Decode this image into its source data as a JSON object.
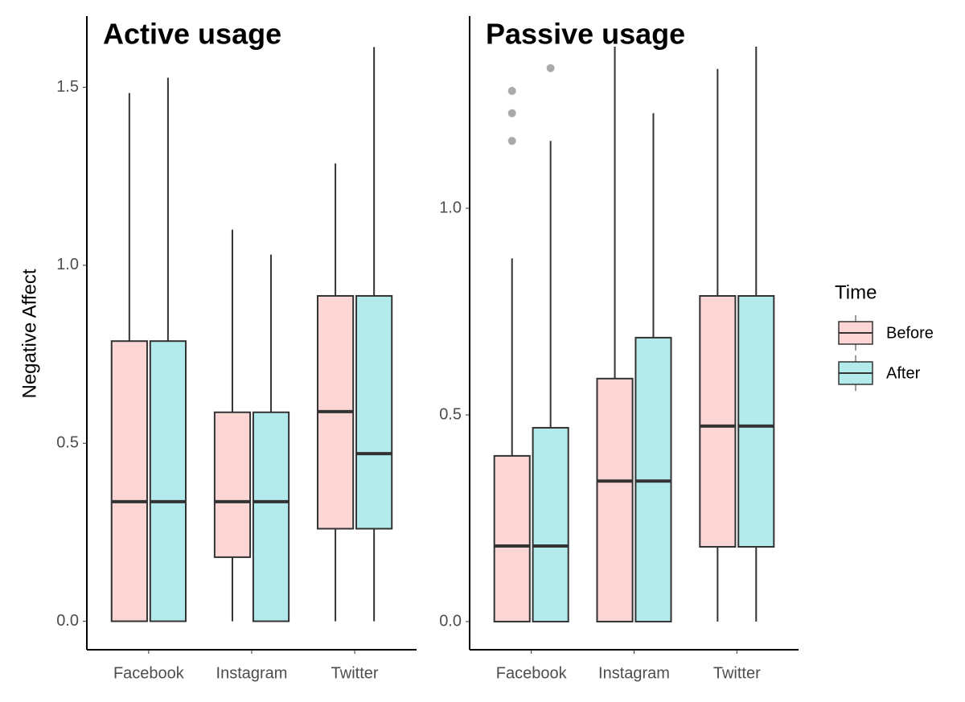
{
  "chart_data": [
    {
      "type": "box",
      "title": "Active usage",
      "y_label": "Negative Affect",
      "categories": [
        "Facebook",
        "Instagram",
        "Twitter"
      ],
      "ylim": [
        -0.08,
        1.7
      ],
      "yticks": [
        {
          "value": 0,
          "label": "0.0"
        },
        {
          "value": 0.5,
          "label": "0.5"
        },
        {
          "value": 1,
          "label": "1.0"
        },
        {
          "value": 1.5,
          "label": "1.5"
        }
      ],
      "series": [
        {
          "name": "Before",
          "color": "#fcd5d5",
          "values": [
            {
              "min": 0,
              "q1": 0,
              "median": 0.336,
              "q3": 0.787,
              "max": 1.484,
              "outliers": []
            },
            {
              "min": 0,
              "q1": 0.18,
              "median": 0.336,
              "q3": 0.587,
              "max": 1.1,
              "outliers": []
            },
            {
              "min": 0,
              "q1": 0.26,
              "median": 0.589,
              "q3": 0.914,
              "max": 1.286,
              "outliers": []
            }
          ]
        },
        {
          "name": "After",
          "color": "#b3ebed",
          "values": [
            {
              "min": 0,
              "q1": 0,
              "median": 0.336,
              "q3": 0.787,
              "max": 1.527,
              "outliers": []
            },
            {
              "min": 0,
              "q1": 0,
              "median": 0.336,
              "q3": 0.587,
              "max": 1.03,
              "outliers": []
            },
            {
              "min": 0,
              "q1": 0.26,
              "median": 0.471,
              "q3": 0.914,
              "max": 1.613,
              "outliers": []
            }
          ]
        }
      ]
    },
    {
      "type": "box",
      "title": "Passive usage",
      "legend_title": "Time",
      "categories": [
        "Facebook",
        "Instagram",
        "Twitter"
      ],
      "ylim": [
        -0.068,
        1.465
      ],
      "yticks": [
        {
          "value": 0,
          "label": "0.0"
        },
        {
          "value": 0.5,
          "label": "0.5"
        },
        {
          "value": 1,
          "label": "1.0"
        }
      ],
      "series": [
        {
          "name": "Before",
          "color": "#fcd5d5",
          "values": [
            {
              "min": 0,
              "q1": 0,
              "median": 0.183,
              "q3": 0.401,
              "max": 0.879,
              "outliers": [
                1.163,
                1.23,
                1.284
              ]
            },
            {
              "min": 0,
              "q1": 0,
              "median": 0.34,
              "q3": 0.588,
              "max": 1.391,
              "outliers": []
            },
            {
              "min": 0,
              "q1": 0.181,
              "median": 0.473,
              "q3": 0.788,
              "max": 1.337,
              "outliers": []
            }
          ]
        },
        {
          "name": "After",
          "color": "#b3ebed",
          "values": [
            {
              "min": 0,
              "q1": 0,
              "median": 0.183,
              "q3": 0.469,
              "max": 1.163,
              "outliers": [
                1.339
              ]
            },
            {
              "min": 0,
              "q1": 0,
              "median": 0.34,
              "q3": 0.687,
              "max": 1.23,
              "outliers": []
            },
            {
              "min": 0,
              "q1": 0.181,
              "median": 0.473,
              "q3": 0.788,
              "max": 1.391,
              "outliers": []
            }
          ]
        }
      ]
    }
  ]
}
